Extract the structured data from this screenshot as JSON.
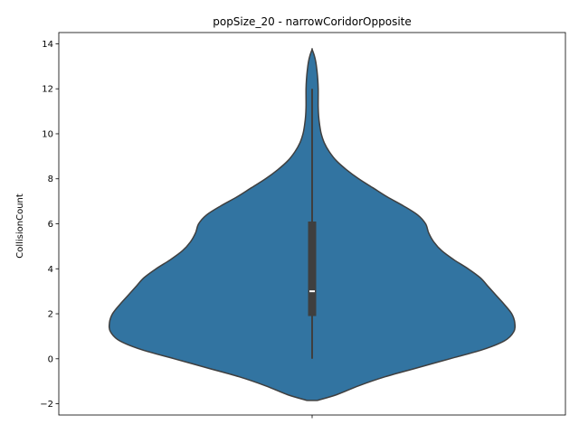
{
  "chart_data": {
    "type": "violin",
    "title": "popSize_20 - narrowCoridorOpposite",
    "xlabel": "",
    "ylabel": "CollisionCount",
    "ylim": [
      -2.5,
      14.5
    ],
    "yticks": [
      -2,
      0,
      2,
      4,
      6,
      8,
      10,
      12,
      14
    ],
    "ytick_labels": [
      "−2",
      "0",
      "2",
      "4",
      "6",
      "8",
      "10",
      "12",
      "14"
    ],
    "xtick_labels": [
      ""
    ],
    "grid": false,
    "legend": "none",
    "color": "#3274a1",
    "edge_color": "#3f3f3f",
    "box": {
      "min": 0,
      "q1": 1.9,
      "median": 3,
      "q3": 6.1,
      "max": 12
    },
    "density": [
      {
        "y": -1.85,
        "w": 0.025
      },
      {
        "y": -1.6,
        "w": 0.12
      },
      {
        "y": -1.2,
        "w": 0.23
      },
      {
        "y": -0.8,
        "w": 0.36
      },
      {
        "y": -0.4,
        "w": 0.52
      },
      {
        "y": 0.0,
        "w": 0.68
      },
      {
        "y": 0.4,
        "w": 0.84
      },
      {
        "y": 0.8,
        "w": 0.95
      },
      {
        "y": 1.2,
        "w": 0.995
      },
      {
        "y": 1.6,
        "w": 1.0
      },
      {
        "y": 2.0,
        "w": 0.985
      },
      {
        "y": 2.4,
        "w": 0.95
      },
      {
        "y": 2.8,
        "w": 0.91
      },
      {
        "y": 3.2,
        "w": 0.87
      },
      {
        "y": 3.6,
        "w": 0.83
      },
      {
        "y": 4.0,
        "w": 0.77
      },
      {
        "y": 4.4,
        "w": 0.7
      },
      {
        "y": 4.8,
        "w": 0.64
      },
      {
        "y": 5.2,
        "w": 0.6
      },
      {
        "y": 5.6,
        "w": 0.575
      },
      {
        "y": 6.0,
        "w": 0.56
      },
      {
        "y": 6.4,
        "w": 0.52
      },
      {
        "y": 6.8,
        "w": 0.45
      },
      {
        "y": 7.2,
        "w": 0.37
      },
      {
        "y": 7.6,
        "w": 0.3
      },
      {
        "y": 8.0,
        "w": 0.23
      },
      {
        "y": 8.4,
        "w": 0.17
      },
      {
        "y": 8.8,
        "w": 0.12
      },
      {
        "y": 9.2,
        "w": 0.085
      },
      {
        "y": 9.6,
        "w": 0.06
      },
      {
        "y": 10.0,
        "w": 0.045
      },
      {
        "y": 10.4,
        "w": 0.037
      },
      {
        "y": 10.8,
        "w": 0.032
      },
      {
        "y": 11.2,
        "w": 0.03
      },
      {
        "y": 11.6,
        "w": 0.03
      },
      {
        "y": 12.0,
        "w": 0.03
      },
      {
        "y": 12.4,
        "w": 0.028
      },
      {
        "y": 12.8,
        "w": 0.024
      },
      {
        "y": 13.2,
        "w": 0.018
      },
      {
        "y": 13.5,
        "w": 0.01
      },
      {
        "y": 13.75,
        "w": 0.0
      }
    ]
  }
}
